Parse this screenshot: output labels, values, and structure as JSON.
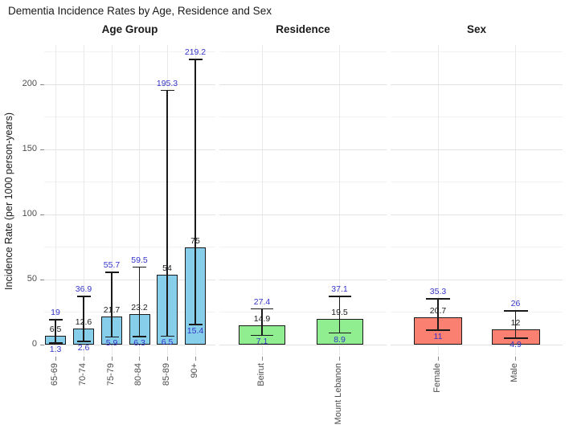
{
  "title": "Dementia Incidence Rates by Age, Residence and Sex",
  "chart_data": {
    "type": "bar",
    "title": "Dementia Incidence Rates by Age, Residence and Sex",
    "ylabel": "Incidence Rate (per 1000 person-years)",
    "ylim": [
      0,
      230
    ],
    "yticks": [
      0,
      50,
      100,
      150,
      200
    ],
    "grid": "horizontal major+minor light gray, vertical gridline at each category; white background",
    "error_bars": true,
    "value_label_color": "#1a1a1a",
    "ci_label_color": "#3434c8",
    "panels": [
      {
        "header": "Age Group",
        "fill": "#87CEEB",
        "categories": [
          "65-69",
          "70-74",
          "75-79",
          "80-84",
          "85-89",
          "90+"
        ],
        "values": [
          6.5,
          12.6,
          21.7,
          23.2,
          54,
          75
        ],
        "ci_low": [
          1.3,
          2.6,
          5.9,
          6.3,
          6.5,
          15.4
        ],
        "ci_high": [
          19,
          36.9,
          55.7,
          59.5,
          195.3,
          219.2
        ]
      },
      {
        "header": "Residence",
        "fill": "#90EE90",
        "categories": [
          "Beirut",
          "Mount Lebanon"
        ],
        "values": [
          14.9,
          19.5
        ],
        "ci_low": [
          7.1,
          8.9
        ],
        "ci_high": [
          27.4,
          37.1
        ]
      },
      {
        "header": "Sex",
        "fill": "#FA8072",
        "categories": [
          "Female",
          "Male"
        ],
        "values": [
          20.7,
          12
        ],
        "ci_low": [
          11,
          4.9
        ],
        "ci_high": [
          35.3,
          26
        ]
      }
    ]
  }
}
